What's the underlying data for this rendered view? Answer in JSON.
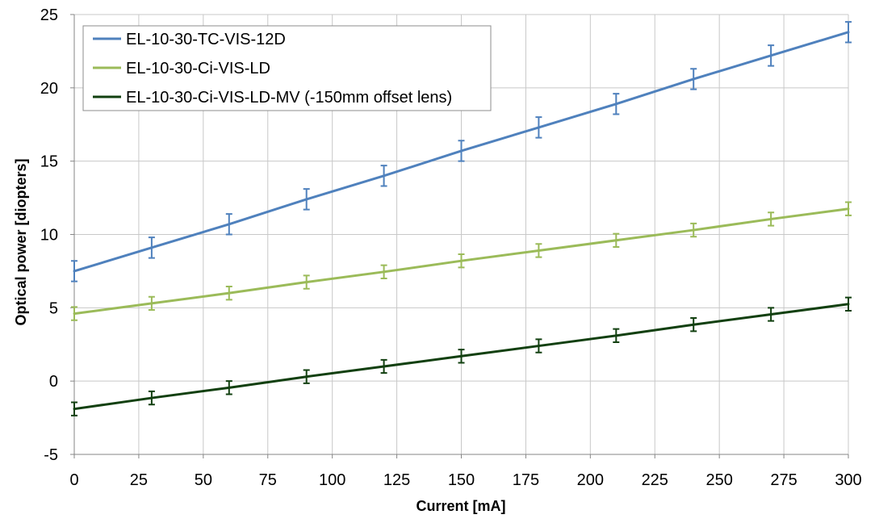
{
  "chart_data": {
    "type": "line",
    "xlabel": "Current [mA]",
    "ylabel": "Optical power [diopters]",
    "xlim": [
      0,
      300
    ],
    "ylim": [
      -5,
      25
    ],
    "xticks": [
      0,
      25,
      50,
      75,
      100,
      125,
      150,
      175,
      200,
      225,
      250,
      275,
      300
    ],
    "yticks": [
      -5,
      0,
      5,
      10,
      15,
      20,
      25
    ],
    "grid": true,
    "legend_position": "top-left",
    "x": [
      0,
      30,
      60,
      90,
      120,
      150,
      180,
      210,
      240,
      270,
      300
    ],
    "series": [
      {
        "name": "EL-10-30-TC-VIS-12D",
        "color": "#4F81BD",
        "values": [
          7.5,
          9.1,
          10.7,
          12.4,
          14.0,
          15.7,
          17.3,
          18.9,
          20.6,
          22.2,
          23.8
        ],
        "error": 0.7
      },
      {
        "name": "EL-10-30-Ci-VIS-LD",
        "color": "#9BBB59",
        "values": [
          4.6,
          5.3,
          6.0,
          6.75,
          7.45,
          8.2,
          8.9,
          9.6,
          10.3,
          11.05,
          11.75
        ],
        "error": 0.45
      },
      {
        "name": "EL-10-30-Ci-VIS-LD-MV (-150mm offset lens)",
        "color": "#124010",
        "values": [
          -1.9,
          -1.15,
          -0.45,
          0.3,
          1.0,
          1.7,
          2.4,
          3.1,
          3.85,
          4.55,
          5.25
        ],
        "error": 0.45
      }
    ]
  }
}
